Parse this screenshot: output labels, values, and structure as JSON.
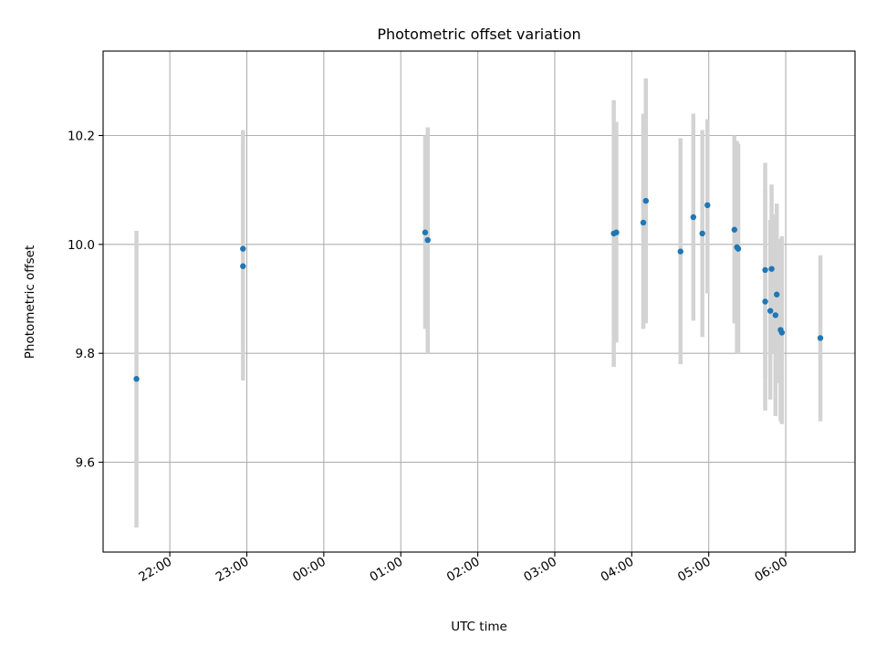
{
  "chart_data": {
    "type": "scatter",
    "title": "Photometric offset variation",
    "xlabel": "UTC time",
    "ylabel": "Photometric offset",
    "x_range": [
      "21:08",
      "06:54"
    ],
    "ylim": [
      9.435,
      10.355
    ],
    "grid": true,
    "x_ticks": [
      "22:00",
      "23:00",
      "00:00",
      "01:00",
      "02:00",
      "03:00",
      "04:00",
      "05:00",
      "06:00"
    ],
    "y_ticks": [
      9.6,
      9.8,
      10.0,
      10.2
    ],
    "y_tick_labels": [
      "9.6",
      "9.8",
      "10.0",
      "10.2"
    ],
    "colors": {
      "points": "#1f77b4",
      "errorbars": "#d3d3d3"
    },
    "points": [
      {
        "t": "21:34",
        "y": 9.753,
        "ylo": 9.48,
        "yhi": 10.025
      },
      {
        "t": "22:57",
        "y": 9.992,
        "ylo": 9.81,
        "yhi": 10.18
      },
      {
        "t": "22:57",
        "y": 9.96,
        "ylo": 9.75,
        "yhi": 10.21
      },
      {
        "t": "01:19",
        "y": 10.022,
        "ylo": 9.845,
        "yhi": 10.2
      },
      {
        "t": "01:21",
        "y": 10.008,
        "ylo": 9.8,
        "yhi": 10.215
      },
      {
        "t": "03:46",
        "y": 10.02,
        "ylo": 9.775,
        "yhi": 10.265
      },
      {
        "t": "03:48",
        "y": 10.022,
        "ylo": 9.82,
        "yhi": 10.225
      },
      {
        "t": "04:09",
        "y": 10.04,
        "ylo": 9.845,
        "yhi": 10.24
      },
      {
        "t": "04:11",
        "y": 10.08,
        "ylo": 9.855,
        "yhi": 10.305
      },
      {
        "t": "04:38",
        "y": 9.987,
        "ylo": 9.78,
        "yhi": 10.195
      },
      {
        "t": "04:48",
        "y": 10.05,
        "ylo": 9.86,
        "yhi": 10.24
      },
      {
        "t": "04:55",
        "y": 10.02,
        "ylo": 9.83,
        "yhi": 10.21
      },
      {
        "t": "04:59",
        "y": 10.072,
        "ylo": 9.91,
        "yhi": 10.23
      },
      {
        "t": "05:20",
        "y": 10.027,
        "ylo": 9.855,
        "yhi": 10.2
      },
      {
        "t": "05:22",
        "y": 9.995,
        "ylo": 9.8,
        "yhi": 10.19
      },
      {
        "t": "05:23",
        "y": 9.992,
        "ylo": 9.8,
        "yhi": 10.185
      },
      {
        "t": "05:44",
        "y": 9.953,
        "ylo": 9.755,
        "yhi": 10.15
      },
      {
        "t": "05:44",
        "y": 9.895,
        "ylo": 9.695,
        "yhi": 10.1
      },
      {
        "t": "05:48",
        "y": 9.878,
        "ylo": 9.715,
        "yhi": 10.045
      },
      {
        "t": "05:49",
        "y": 9.955,
        "ylo": 9.8,
        "yhi": 10.11
      },
      {
        "t": "05:52",
        "y": 9.87,
        "ylo": 9.685,
        "yhi": 10.055
      },
      {
        "t": "05:53",
        "y": 9.908,
        "ylo": 9.745,
        "yhi": 10.075
      },
      {
        "t": "05:56",
        "y": 9.843,
        "ylo": 9.675,
        "yhi": 10.01
      },
      {
        "t": "05:57",
        "y": 9.838,
        "ylo": 9.67,
        "yhi": 10.015
      },
      {
        "t": "06:27",
        "y": 9.828,
        "ylo": 9.675,
        "yhi": 9.98
      }
    ]
  }
}
